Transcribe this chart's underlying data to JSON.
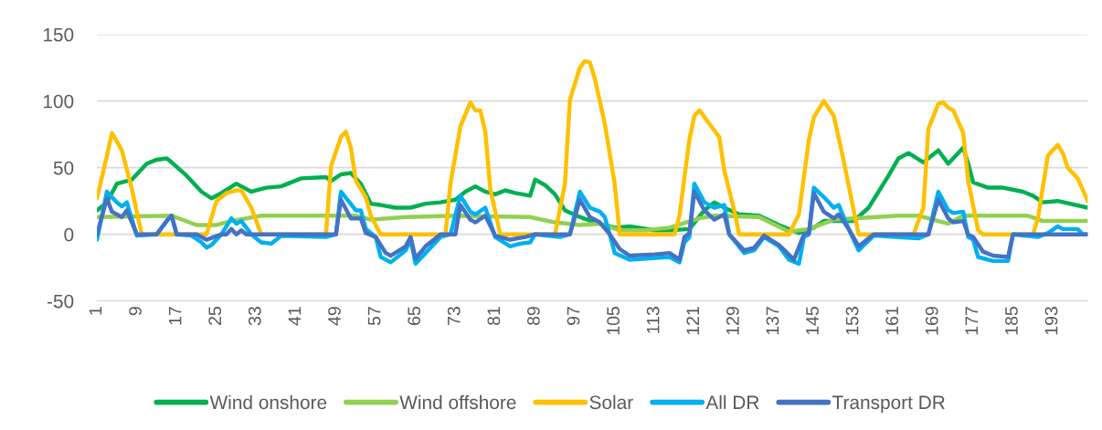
{
  "chart_data": {
    "type": "line",
    "xlim": [
      1,
      200
    ],
    "xticks": [
      1,
      9,
      17,
      25,
      33,
      41,
      49,
      57,
      65,
      73,
      81,
      89,
      97,
      105,
      113,
      121,
      129,
      137,
      145,
      153,
      161,
      169,
      177,
      185,
      193
    ],
    "ylim": [
      -50,
      150
    ],
    "yticks": [
      -50,
      0,
      50,
      100,
      150
    ],
    "grid": "y",
    "legend": "bottom",
    "marker": "none",
    "line_style": "solid",
    "series": [
      {
        "name": "Wind onshore",
        "color": "#00b050",
        "x": [
          1,
          3,
          5,
          8,
          11,
          13,
          15,
          16,
          19,
          22,
          24,
          26,
          29,
          30,
          32,
          35,
          38,
          42,
          47,
          48,
          50,
          52,
          54,
          56,
          58,
          61,
          64,
          67,
          70,
          73,
          75,
          77,
          79,
          81,
          83,
          85,
          88,
          89,
          91,
          93,
          95,
          98,
          101,
          105,
          108,
          113,
          116,
          120,
          123,
          125,
          127,
          130,
          134,
          138,
          142,
          145,
          147,
          153,
          156,
          160,
          162,
          164,
          167,
          170,
          172,
          175,
          176,
          177,
          180,
          183,
          187,
          189,
          191,
          194,
          200
        ],
        "values": [
          18,
          24,
          38,
          41,
          53,
          56,
          57,
          54,
          44,
          32,
          27,
          31,
          38,
          36,
          32,
          35,
          36,
          42,
          43,
          40,
          45,
          46,
          38,
          23,
          22,
          20,
          20,
          23,
          24,
          26,
          32,
          36,
          32,
          30,
          33,
          31,
          29,
          41,
          37,
          30,
          18,
          13,
          9,
          5,
          6,
          3,
          3,
          4,
          18,
          24,
          20,
          15,
          14,
          7,
          1,
          5,
          10,
          10,
          20,
          44,
          57,
          61,
          54,
          63,
          53,
          65,
          53,
          39,
          35,
          35,
          32,
          29,
          24,
          25,
          20
        ]
      },
      {
        "name": "Wind offshore",
        "color": "#92d050",
        "x": [
          1,
          16,
          21,
          25,
          28,
          34,
          53,
          56,
          63,
          73,
          88,
          93,
          98,
          102,
          106,
          111,
          116,
          122,
          125,
          134,
          140,
          144,
          149,
          153,
          162,
          166,
          170,
          172,
          175,
          188,
          191,
          200
        ],
        "values": [
          13,
          14,
          7,
          7,
          10,
          14,
          14,
          11,
          13,
          14,
          13,
          9,
          7,
          8,
          3,
          3,
          5,
          12,
          14,
          13,
          2,
          4,
          11,
          12,
          14,
          14,
          10,
          8,
          14,
          14,
          10,
          10
        ]
      },
      {
        "name": "Solar",
        "color": "#ffc000",
        "x": [
          1,
          3,
          4,
          6,
          8,
          10,
          23,
          25,
          27,
          29,
          30,
          32,
          34,
          47,
          48,
          50,
          51,
          52,
          53,
          55,
          56,
          58,
          71,
          72,
          74,
          76,
          77,
          78,
          79,
          80,
          82,
          93,
          95,
          96,
          98,
          99,
          100,
          101,
          103,
          105,
          106,
          117,
          118,
          120,
          121,
          122,
          124,
          126,
          127,
          129,
          130,
          140,
          142,
          144,
          145,
          147,
          149,
          151,
          153,
          154,
          165,
          167,
          168,
          170,
          171,
          172,
          173,
          175,
          176,
          178,
          179,
          189,
          190,
          192,
          194,
          195,
          196,
          198,
          200
        ],
        "values": [
          27,
          59,
          76,
          63,
          34,
          0,
          0,
          25,
          31,
          33,
          33,
          20,
          0,
          0,
          51,
          73,
          77,
          65,
          40,
          28,
          14,
          0,
          0,
          38,
          81,
          99,
          93,
          93,
          77,
          34,
          0,
          0,
          38,
          101,
          125,
          130,
          129,
          117,
          83,
          38,
          0,
          0,
          14,
          71,
          89,
          93,
          83,
          73,
          48,
          18,
          0,
          0,
          15,
          71,
          88,
          100,
          89,
          55,
          18,
          0,
          0,
          20,
          79,
          98,
          99,
          95,
          93,
          76,
          40,
          3,
          0,
          0,
          12,
          59,
          67,
          61,
          50,
          42,
          25
        ]
      },
      {
        "name": "All DR",
        "color": "#00b0f0",
        "x": [
          1,
          3,
          5,
          6,
          7,
          9,
          13,
          15,
          16,
          17,
          20,
          22,
          23,
          24,
          26,
          28,
          29,
          30,
          32,
          34,
          36,
          38,
          47,
          49,
          50,
          53,
          54,
          55,
          57,
          58,
          60,
          63,
          64,
          65,
          67,
          70,
          72,
          74,
          76,
          77,
          79,
          81,
          84,
          86,
          88,
          89,
          94,
          96,
          98,
          100,
          102,
          103,
          104,
          105,
          108,
          116,
          118,
          119,
          120,
          121,
          123,
          125,
          127,
          128,
          131,
          133,
          135,
          138,
          140,
          142,
          143,
          144,
          145,
          147,
          149,
          150,
          152,
          154,
          157,
          166,
          168,
          170,
          172,
          173,
          175,
          176,
          177,
          178,
          181,
          184,
          185,
          190,
          192,
          194,
          195,
          198,
          199,
          200
        ],
        "values": [
          -4,
          32,
          24,
          21,
          24,
          -1,
          0,
          10,
          14,
          0,
          -1,
          -6,
          -10,
          -8,
          0,
          12,
          8,
          10,
          0,
          -6,
          -7,
          -1,
          -2,
          0,
          32,
          18,
          18,
          4,
          -2,
          -17,
          -21,
          -12,
          -4,
          -22,
          -14,
          -2,
          0,
          29,
          17,
          15,
          20,
          -2,
          -9,
          -7,
          -6,
          0,
          -2,
          0,
          32,
          20,
          17,
          13,
          0,
          -14,
          -19,
          -17,
          -21,
          -6,
          -2,
          38,
          24,
          20,
          22,
          0,
          -14,
          -12,
          -2,
          -9,
          -19,
          -22,
          -2,
          0,
          35,
          28,
          20,
          22,
          4,
          -12,
          -1,
          -3,
          0,
          32,
          18,
          16,
          17,
          -2,
          -4,
          -17,
          -20,
          -20,
          0,
          -2,
          1,
          6,
          4,
          4,
          0,
          0
        ]
      },
      {
        "name": "Transport DR",
        "color": "#4472c4",
        "x": [
          1,
          3,
          4,
          6,
          7,
          9,
          13,
          15,
          16,
          17,
          21,
          23,
          26,
          27,
          28,
          29,
          30,
          31,
          49,
          50,
          52,
          54,
          55,
          57,
          59,
          60,
          63,
          64,
          65,
          67,
          70,
          73,
          74,
          76,
          77,
          79,
          81,
          84,
          87,
          89,
          96,
          98,
          100,
          102,
          104,
          106,
          108,
          113,
          116,
          118,
          119,
          120,
          121,
          123,
          125,
          127,
          128,
          131,
          133,
          135,
          138,
          141,
          143,
          144,
          145,
          147,
          149,
          150,
          152,
          154,
          157,
          168,
          170,
          172,
          173,
          175,
          176,
          177,
          179,
          181,
          184,
          185,
          200
        ],
        "values": [
          0,
          27,
          17,
          13,
          18,
          0,
          0,
          10,
          14,
          0,
          0,
          -4,
          0,
          0,
          4,
          0,
          3,
          0,
          0,
          26,
          12,
          12,
          1,
          -2,
          -14,
          -16,
          -9,
          -2,
          -18,
          -9,
          0,
          0,
          22,
          11,
          9,
          14,
          -1,
          -4,
          -2,
          0,
          0,
          26,
          13,
          9,
          0,
          -11,
          -16,
          -15,
          -14,
          -19,
          -2,
          1,
          32,
          18,
          11,
          15,
          0,
          -12,
          -10,
          -1,
          -8,
          -19,
          0,
          1,
          31,
          17,
          12,
          15,
          4,
          -9,
          0,
          0,
          26,
          12,
          9,
          10,
          0,
          -2,
          -13,
          -16,
          -17,
          0,
          0
        ]
      }
    ]
  }
}
